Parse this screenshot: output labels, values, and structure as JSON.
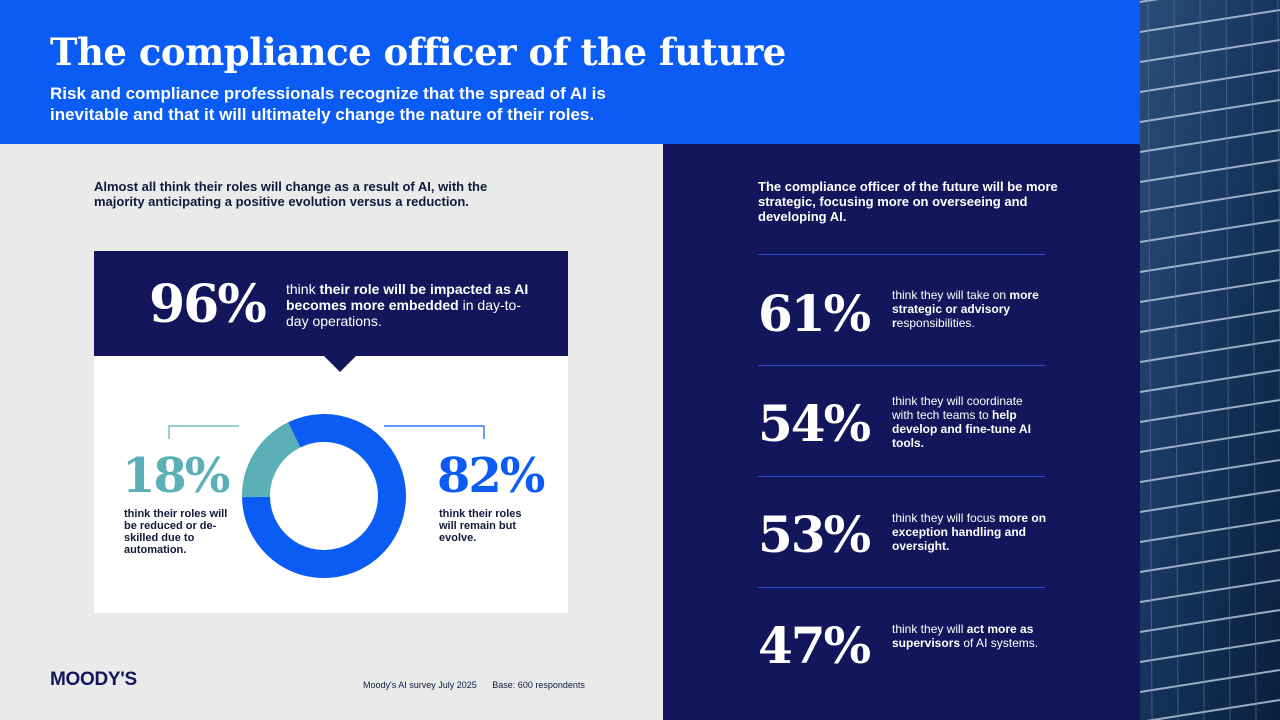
{
  "header": {
    "title": "The compliance officer of the future",
    "subtitle": "Risk and compliance professionals recognize that the spread of AI is inevitable and that it will ultimately change the nature of their roles."
  },
  "left": {
    "intro": "Almost all think their roles will change as a result of AI, with the majority anticipating a positive evolution versus a reduction.",
    "headline": {
      "value": "96%",
      "text_plain_1": "think ",
      "text_bold": "their role will be impacted as AI becomes more embedded",
      "text_plain_2": " in day-to-day operations."
    },
    "reduced": {
      "value": "18%",
      "text": "think their roles will be reduced or de-skilled due to automation."
    },
    "evolve": {
      "value": "82%",
      "text": "think their roles will remain but evolve."
    },
    "logo": "MOODY'S",
    "source": "Moody's AI survey July 2025",
    "base": "Base: 600 respondents"
  },
  "chart_data": {
    "type": "pie",
    "categories": [
      "think their roles will remain but evolve.",
      "think their roles will be reduced or de-skilled due to automation."
    ],
    "values": [
      82,
      18
    ],
    "colors": [
      "#0a5cf5",
      "#5bb0b7"
    ]
  },
  "right": {
    "intro": "The compliance officer of the future will be more strategic, focusing more on overseeing and developing AI.",
    "stats": [
      {
        "value": "61%",
        "plain": "think they will take on ",
        "bold": "more strategic or advisory r",
        "tail": "esponsibilities."
      },
      {
        "value": "54%",
        "plain": "think they will coordinate with tech teams to ",
        "bold": "help develop and fine-tune AI tools.",
        "tail": ""
      },
      {
        "value": "53%",
        "plain": "think they will focus ",
        "bold": "more on exception handling and oversight.",
        "tail": ""
      },
      {
        "value": "47%",
        "plain": "think they will ",
        "bold": "act more as supervisors",
        "tail": " of AI systems."
      }
    ]
  },
  "colors": {
    "brand_blue": "#0a5cf5",
    "navy": "#13165a",
    "teal": "#5bb0b7"
  },
  "photo": {
    "icon": "building-facade-photo"
  }
}
